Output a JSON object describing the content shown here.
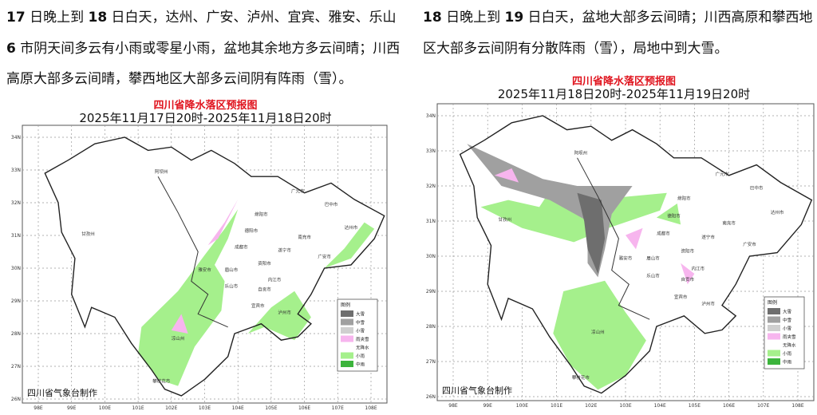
{
  "left": {
    "paragraph": [
      {
        "t": "17",
        "b": true
      },
      {
        "t": " 日晚上到 "
      },
      {
        "t": "18",
        "b": true
      },
      {
        "t": " 日白天，达州、广安、泸州、宜宾、雅安、乐山 "
      },
      {
        "t": "6",
        "b": true
      },
      {
        "t": " 市阴天间多云有小雨或零星小雨，盆地其余地方多云间晴；川西高原大部多云间晴，攀西地区大部多云间阴有阵雨（雪）。"
      }
    ],
    "map": {
      "title": "四川省降水落区预报图",
      "subtitle": "2025年11月17日20时-2025年11月18日20时",
      "credit": "四川省气象台制作"
    }
  },
  "right": {
    "paragraph": [
      {
        "t": "18",
        "b": true
      },
      {
        "t": " 日晚上到 "
      },
      {
        "t": "19",
        "b": true
      },
      {
        "t": " 日白天，盆地大部多云间晴；川西高原和攀西地区大部多云间阴有分散阵雨（雪），局地中到大雪。"
      }
    ],
    "map": {
      "title": "四川省降水落区预报图",
      "subtitle": "2025年11月18日20时-2025年11月19日20时",
      "credit": "四川省气象台制作"
    }
  },
  "legend": {
    "title": "图例",
    "items": [
      {
        "label": "大雪",
        "color": "#6e6e6e"
      },
      {
        "label": "中雪",
        "color": "#a0a0a0"
      },
      {
        "label": "小雪",
        "color": "#cfcfcf"
      },
      {
        "label": "雨夹雪",
        "color": "#f7b5ee"
      },
      {
        "label": "无降水",
        "color": "#ffffff"
      },
      {
        "label": "小雨",
        "color": "#a5f08c"
      },
      {
        "label": "中雨",
        "color": "#3cb43c"
      }
    ]
  },
  "axes": {
    "lat_labels": [
      "26N",
      "27N",
      "28N",
      "29N",
      "30N",
      "31N",
      "32N",
      "33N",
      "34N"
    ],
    "lon_labels": [
      "98E",
      "99E",
      "100E",
      "101E",
      "102E",
      "103E",
      "104E",
      "105E",
      "106E",
      "107E",
      "108E"
    ]
  },
  "cities": [
    "阿坝州",
    "广元市",
    "巴中市",
    "绵阳市",
    "甘孜州",
    "德阳市",
    "南充市",
    "达州市",
    "成都市",
    "遂宁市",
    "广安市",
    "资阳市",
    "雅安市",
    "眉山市",
    "内江市",
    "乐山市",
    "自贡市",
    "宜宾市",
    "泸州市",
    "凉山州",
    "攀枝花市"
  ]
}
